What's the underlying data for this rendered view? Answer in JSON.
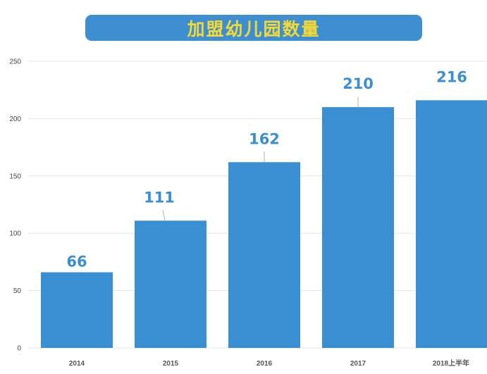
{
  "title": "加盟幼儿园数量",
  "colors": {
    "bar": "#3a8fd2",
    "title_bg": "#3d8fd1",
    "title_text": "#f5d833",
    "data_label": "#3a8fd2",
    "grid": "#e6e6e6",
    "leader": "#b0b0b0"
  },
  "chart_data": {
    "type": "bar",
    "categories": [
      "2014",
      "2015",
      "2016",
      "2017",
      "2018上半年"
    ],
    "values": [
      66,
      111,
      162,
      210,
      216
    ],
    "data_labels": [
      "66",
      "111",
      "162",
      "210",
      "216"
    ],
    "yticks": [
      0,
      50,
      100,
      150,
      200,
      250
    ],
    "ylim": [
      0,
      250
    ],
    "grid": true,
    "xlabel": "",
    "ylabel": ""
  }
}
